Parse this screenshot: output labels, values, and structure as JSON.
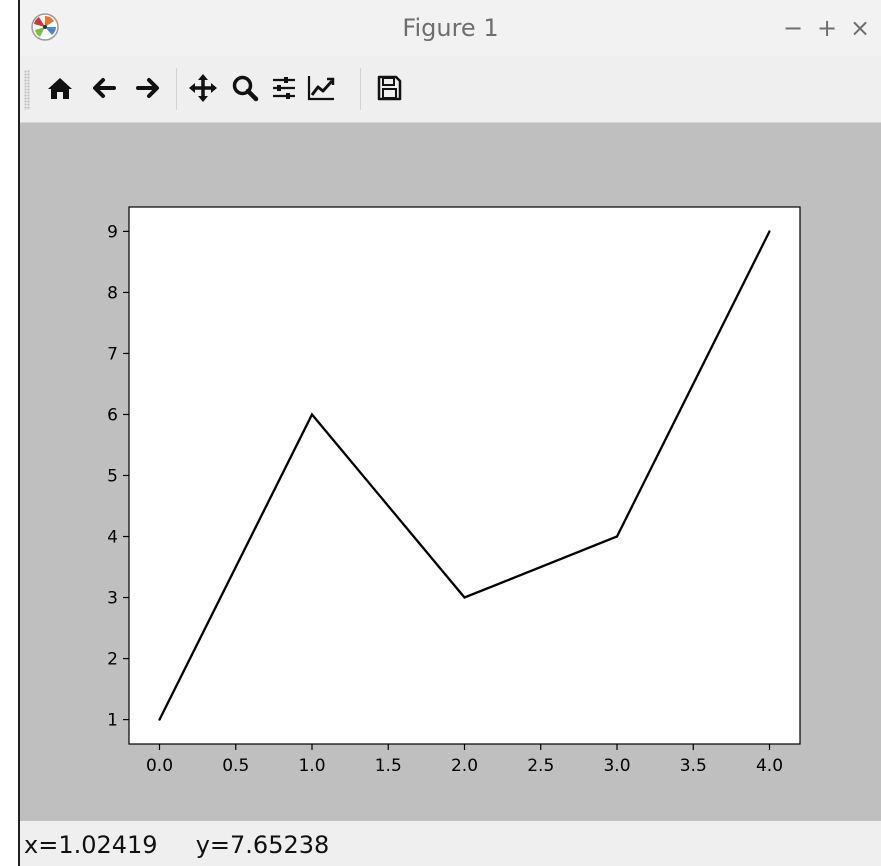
{
  "window": {
    "title": "Figure 1",
    "controls": {
      "minimize": "−",
      "maximize": "+",
      "close": "×"
    }
  },
  "toolbar": {
    "buttons": [
      {
        "name": "home",
        "icon": "home-icon"
      },
      {
        "name": "back",
        "icon": "arrow-left-icon"
      },
      {
        "name": "forward",
        "icon": "arrow-right-icon"
      },
      {
        "name": "pan",
        "icon": "move-icon"
      },
      {
        "name": "zoom",
        "icon": "magnifier-icon"
      },
      {
        "name": "configure-subplots",
        "icon": "sliders-icon"
      },
      {
        "name": "edit-axes",
        "icon": "line-chart-icon"
      },
      {
        "name": "save",
        "icon": "floppy-disk-icon"
      }
    ]
  },
  "status": {
    "x": "x=1.02419",
    "y": "y=7.65238"
  },
  "colors": {
    "canvas": "#bfbfbf",
    "line": "#000000",
    "axes_bg": "#ffffff"
  },
  "chart_data": {
    "type": "line",
    "title": "",
    "xlabel": "",
    "ylabel": "",
    "x": [
      0,
      1,
      2,
      3,
      4
    ],
    "series": [
      {
        "values": [
          1,
          6,
          3,
          4,
          9
        ],
        "color": "#000000"
      }
    ],
    "xlim": [
      -0.2,
      4.2
    ],
    "ylim": [
      0.6,
      9.4
    ],
    "xticks": [
      0.0,
      0.5,
      1.0,
      1.5,
      2.0,
      2.5,
      3.0,
      3.5,
      4.0
    ],
    "xtick_labels": [
      "0.0",
      "0.5",
      "1.0",
      "1.5",
      "2.0",
      "2.5",
      "3.0",
      "3.5",
      "4.0"
    ],
    "yticks": [
      1,
      2,
      3,
      4,
      5,
      6,
      7,
      8,
      9
    ],
    "ytick_labels": [
      "1",
      "2",
      "3",
      "4",
      "5",
      "6",
      "7",
      "8",
      "9"
    ],
    "grid": false,
    "legend": "none"
  }
}
